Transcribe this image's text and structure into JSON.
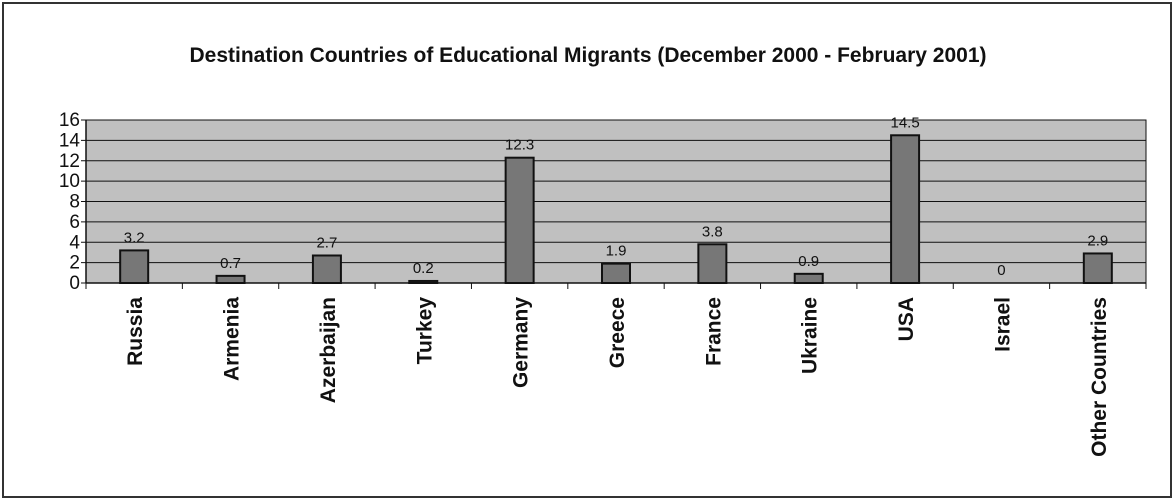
{
  "chart_data": {
    "type": "bar",
    "title": "Destination Countries of Educational Migrants (December 2000 - February 2001)",
    "xlabel": "",
    "ylabel": "",
    "categories": [
      "Russia",
      "Armenia",
      "Azerbaijan",
      "Turkey",
      "Germany",
      "Greece",
      "France",
      "Ukraine",
      "USA",
      "Israel",
      "Other Countries"
    ],
    "values": [
      3.2,
      0.7,
      2.7,
      0.2,
      12.3,
      1.9,
      3.8,
      0.9,
      14.5,
      0,
      2.9
    ],
    "data_labels": [
      "3.2",
      "0.7",
      "2.7",
      "0.2",
      "12.3",
      "1.9",
      "3.8",
      "0.9",
      "14.5",
      "0",
      "2.9"
    ],
    "ylim": [
      0,
      16
    ],
    "yticks": [
      "0",
      "2",
      "4",
      "6",
      "8",
      "10",
      "12",
      "14",
      "16"
    ],
    "grid": true,
    "legend": "none",
    "colors": {
      "plot_bg": "#c0c0c0",
      "bar": "#777777",
      "bar_edge": "#111111",
      "grid": "#111111"
    }
  }
}
